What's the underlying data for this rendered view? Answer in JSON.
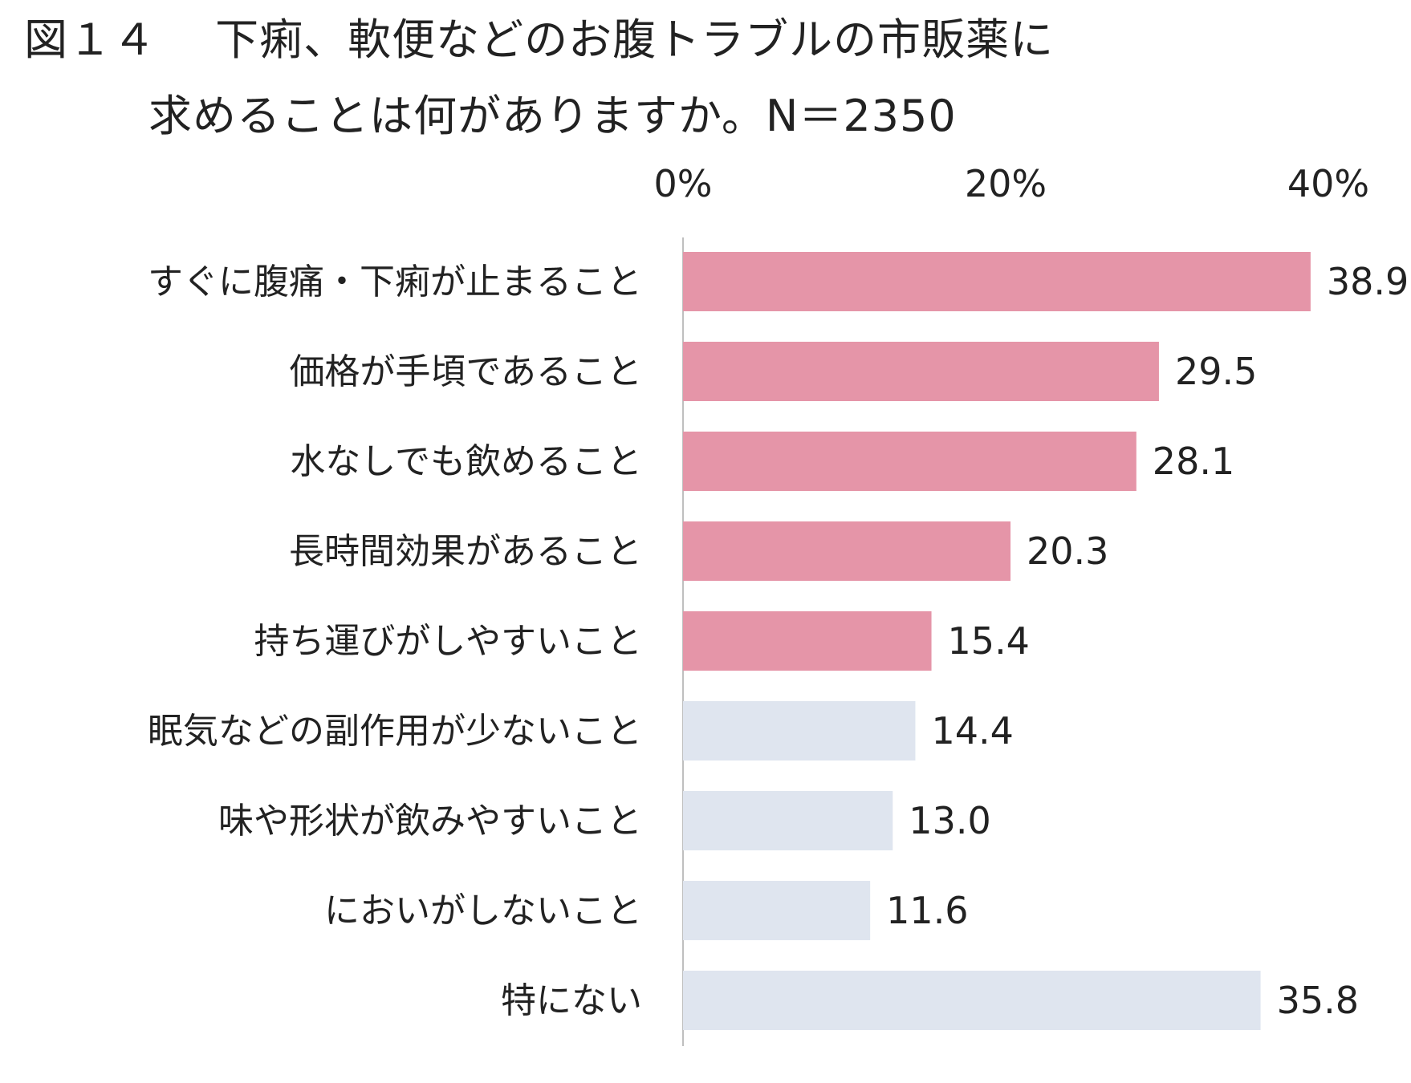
{
  "chart_data": {
    "type": "bar",
    "orientation": "horizontal",
    "title_line1": "図１４　 下痢、軟便などのお腹トラブルの市販薬に",
    "title_line2": "求めることは何がありますか。N＝2350",
    "xlabel": "",
    "ylabel": "",
    "xlim": [
      0,
      40
    ],
    "x_tick_values": [
      0,
      20,
      40
    ],
    "x_tick_labels": [
      "0%",
      "20%",
      "40%"
    ],
    "grid": false,
    "legend": "none",
    "categories": [
      "すぐに腹痛・下痢が止まること",
      "価格が手頃であること",
      "水なしでも飲めること",
      "長時間効果があること",
      "持ち運びがしやすいこと",
      "眠気などの副作用が少ないこと",
      "味や形状が飲みやすいこと",
      "においがしないこと",
      "特にない"
    ],
    "values": [
      38.9,
      29.5,
      28.1,
      20.3,
      15.4,
      14.4,
      13.0,
      11.6,
      35.8
    ],
    "value_labels": [
      "38.9",
      "29.5",
      "28.1",
      "20.3",
      "15.4",
      "14.4",
      "13.0",
      "11.6",
      "35.8"
    ],
    "bar_colors": [
      "#e595a8",
      "#e595a8",
      "#e595a8",
      "#e595a8",
      "#e595a8",
      "#dfe5ef",
      "#dfe5ef",
      "#dfe5ef",
      "#dfe5ef"
    ],
    "axis_color": "#bfbfbf"
  }
}
